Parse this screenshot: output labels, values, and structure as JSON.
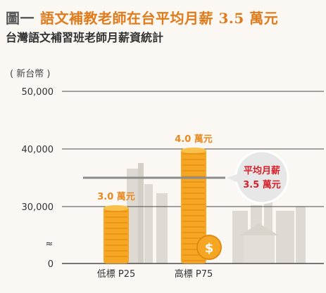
{
  "header": {
    "title_prefix": "圖一",
    "title": "語文補教老師在台平均月薪 3.5 萬元",
    "subtitle": "台灣語文補習班老師月薪資統計",
    "unit": "( 新台幣 )"
  },
  "chart_data": {
    "type": "bar",
    "categories": [
      "低標 P25",
      "高標 P75"
    ],
    "values": [
      30000,
      40000
    ],
    "value_labels": [
      "3.0 萬元",
      "4.0 萬元"
    ],
    "y_ticks": [
      "50,000",
      "40,000",
      "30,000",
      "0"
    ],
    "y_tick_values": [
      50000,
      40000,
      30000,
      0
    ],
    "axis_break_symbol": "≈",
    "ylim": [
      0,
      50000
    ],
    "axis_break": [
      0,
      30000
    ],
    "reference_line": {
      "value": 35000,
      "label_line1": "平均月薪",
      "label_line2": "3.5 萬元"
    },
    "grid": true,
    "colors": {
      "bar": "#f5a623",
      "bar_dark": "#e58a12",
      "value_label": "#e8891e",
      "average_label": "#d81e2a",
      "average_line": "#8c8c8c"
    }
  }
}
